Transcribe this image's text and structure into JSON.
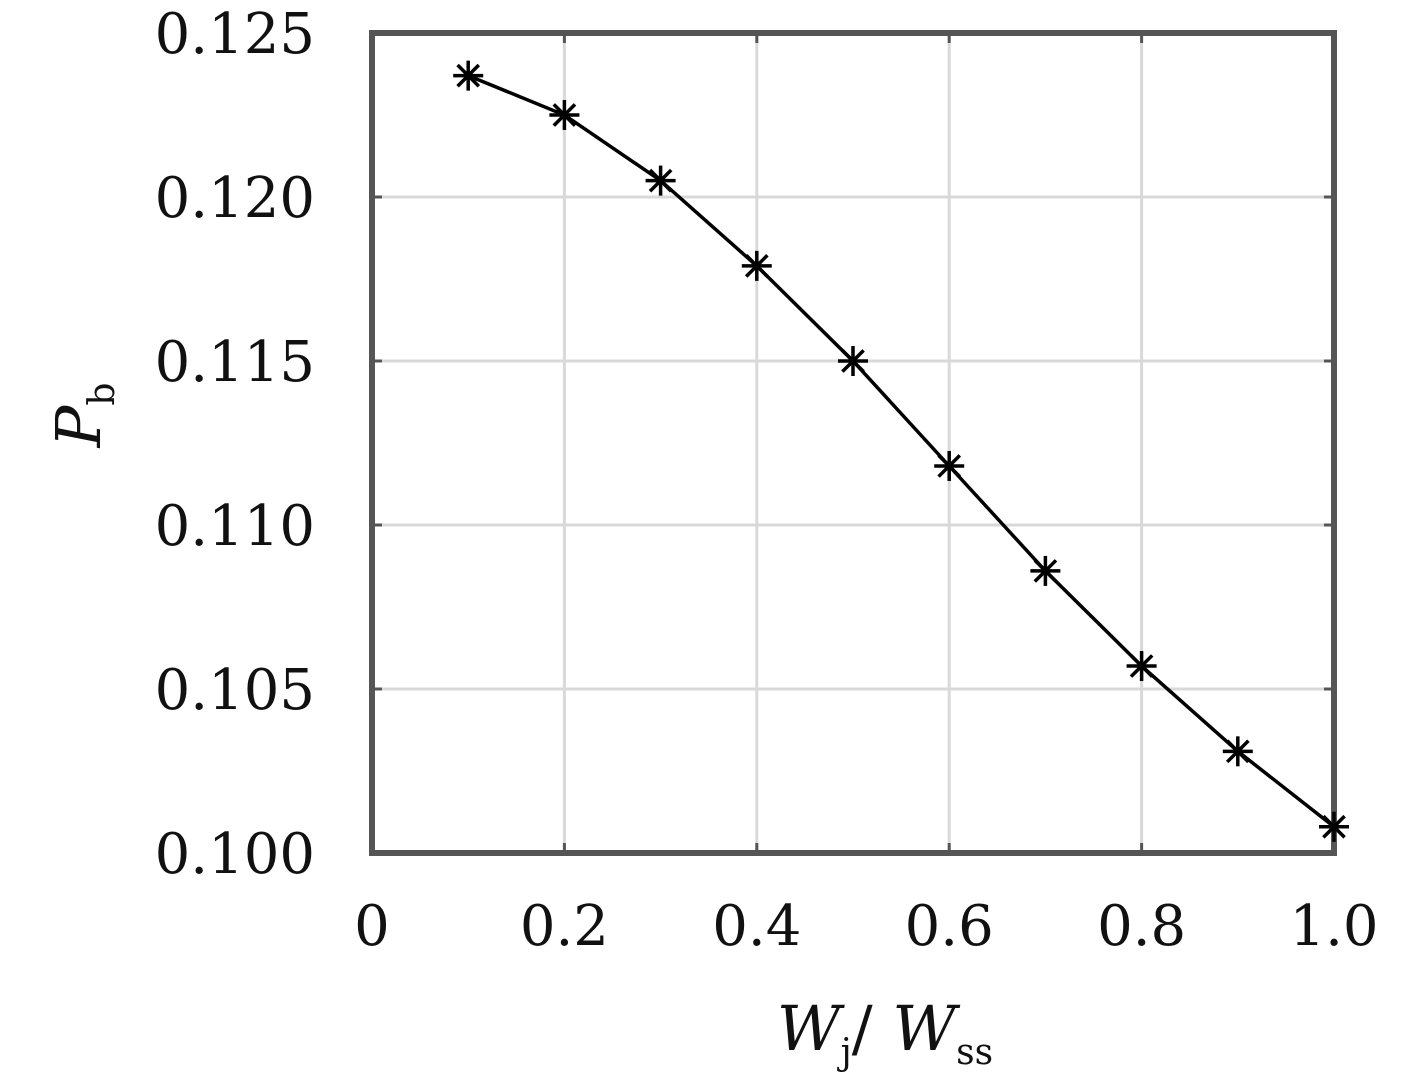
{
  "chart_data": {
    "type": "line",
    "x": [
      0.1,
      0.2,
      0.3,
      0.4,
      0.5,
      0.6,
      0.7,
      0.8,
      0.9,
      1.0
    ],
    "series": [
      {
        "values": [
          0.1237,
          0.1225,
          0.1205,
          0.1179,
          0.115,
          0.1118,
          0.1086,
          0.1057,
          0.1031,
          0.1008
        ],
        "color": "#000000",
        "marker": "asterisk"
      }
    ],
    "xlim": [
      0,
      1.0
    ],
    "ylim": [
      0.1,
      0.125
    ],
    "xticks": [
      0,
      0.2,
      0.4,
      0.6,
      0.8,
      1.0
    ],
    "xtick_labels": [
      "0",
      "0.2",
      "0.4",
      "0.6",
      "0.8",
      "1.0"
    ],
    "yticks": [
      0.1,
      0.105,
      0.11,
      0.115,
      0.12,
      0.125
    ],
    "ytick_labels": [
      "0.100",
      "0.105",
      "0.110",
      "0.115",
      "0.120",
      "0.125"
    ],
    "xgrid": [
      0.2,
      0.4,
      0.6,
      0.8
    ],
    "ygrid": [
      0.105,
      0.11,
      0.115,
      0.12
    ],
    "grid": true,
    "legend": "none",
    "xlabel": {
      "main": "W",
      "sub1": "j",
      "slash": "/ ",
      "main2": "W",
      "sub2": "ss"
    },
    "ylabel": {
      "main": "P",
      "sub": "b"
    }
  }
}
